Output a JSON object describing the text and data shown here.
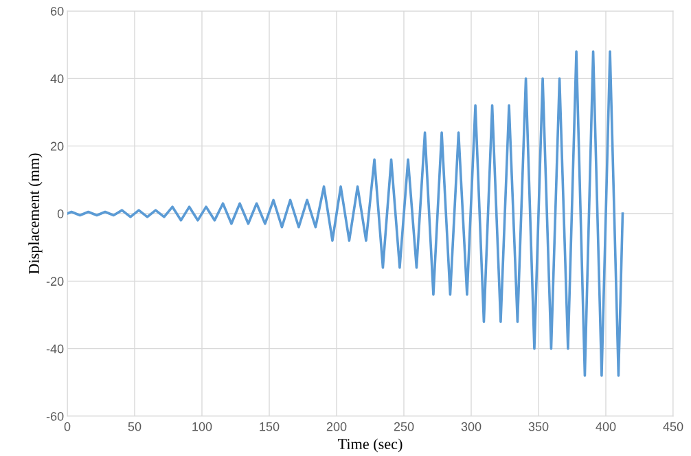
{
  "chart_data": {
    "type": "line",
    "xlabel": "Time (sec)",
    "ylabel": "Displacement (mm)",
    "x": [
      0,
      3.1,
      9.4,
      15.6,
      21.9,
      28.1,
      34.4,
      40.6,
      46.9,
      53.1,
      59.4,
      65.6,
      71.9,
      78.1,
      84.4,
      90.6,
      96.9,
      103.1,
      109.4,
      115.6,
      121.9,
      128.1,
      134.4,
      140.6,
      146.9,
      153.1,
      159.4,
      165.6,
      171.9,
      178.1,
      184.4,
      190.6,
      196.9,
      203.1,
      209.4,
      215.6,
      221.9,
      228.1,
      234.4,
      240.6,
      246.9,
      253.1,
      259.4,
      265.6,
      271.9,
      278.1,
      284.4,
      290.6,
      296.9,
      303.1,
      309.4,
      315.6,
      321.9,
      328.1,
      334.4,
      340.6,
      346.9,
      353.1,
      359.4,
      365.6,
      371.9,
      378.1,
      384.4,
      390.6,
      396.9,
      403.1,
      409.4,
      412.5
    ],
    "series": [
      {
        "color": "#5b9bd5",
        "values": [
          0,
          0.5,
          -0.5,
          0.5,
          -0.5,
          0.5,
          -0.5,
          1,
          -1,
          1,
          -1,
          1,
          -1,
          2,
          -2,
          2,
          -2,
          2,
          -2,
          3,
          -3,
          3,
          -3,
          3,
          -3,
          4,
          -4,
          4,
          -4,
          4,
          -4,
          8,
          -8,
          8,
          -8,
          8,
          -8,
          16,
          -16,
          16,
          -16,
          16,
          -16,
          24,
          -24,
          24,
          -24,
          24,
          -24,
          32,
          -32,
          32,
          -32,
          32,
          -32,
          40,
          -40,
          40,
          -40,
          40,
          -40,
          48,
          -48,
          48,
          -48,
          48,
          -48,
          0
        ]
      }
    ],
    "xlim": [
      0,
      450
    ],
    "xticks": [
      0,
      50,
      100,
      150,
      200,
      250,
      300,
      350,
      400,
      450
    ],
    "ylim": [
      -60,
      60
    ],
    "yticks": [
      -60,
      -40,
      -20,
      0,
      20,
      40,
      60
    ],
    "grid": true,
    "marker": "none",
    "line_style": "solid",
    "legend": false
  }
}
